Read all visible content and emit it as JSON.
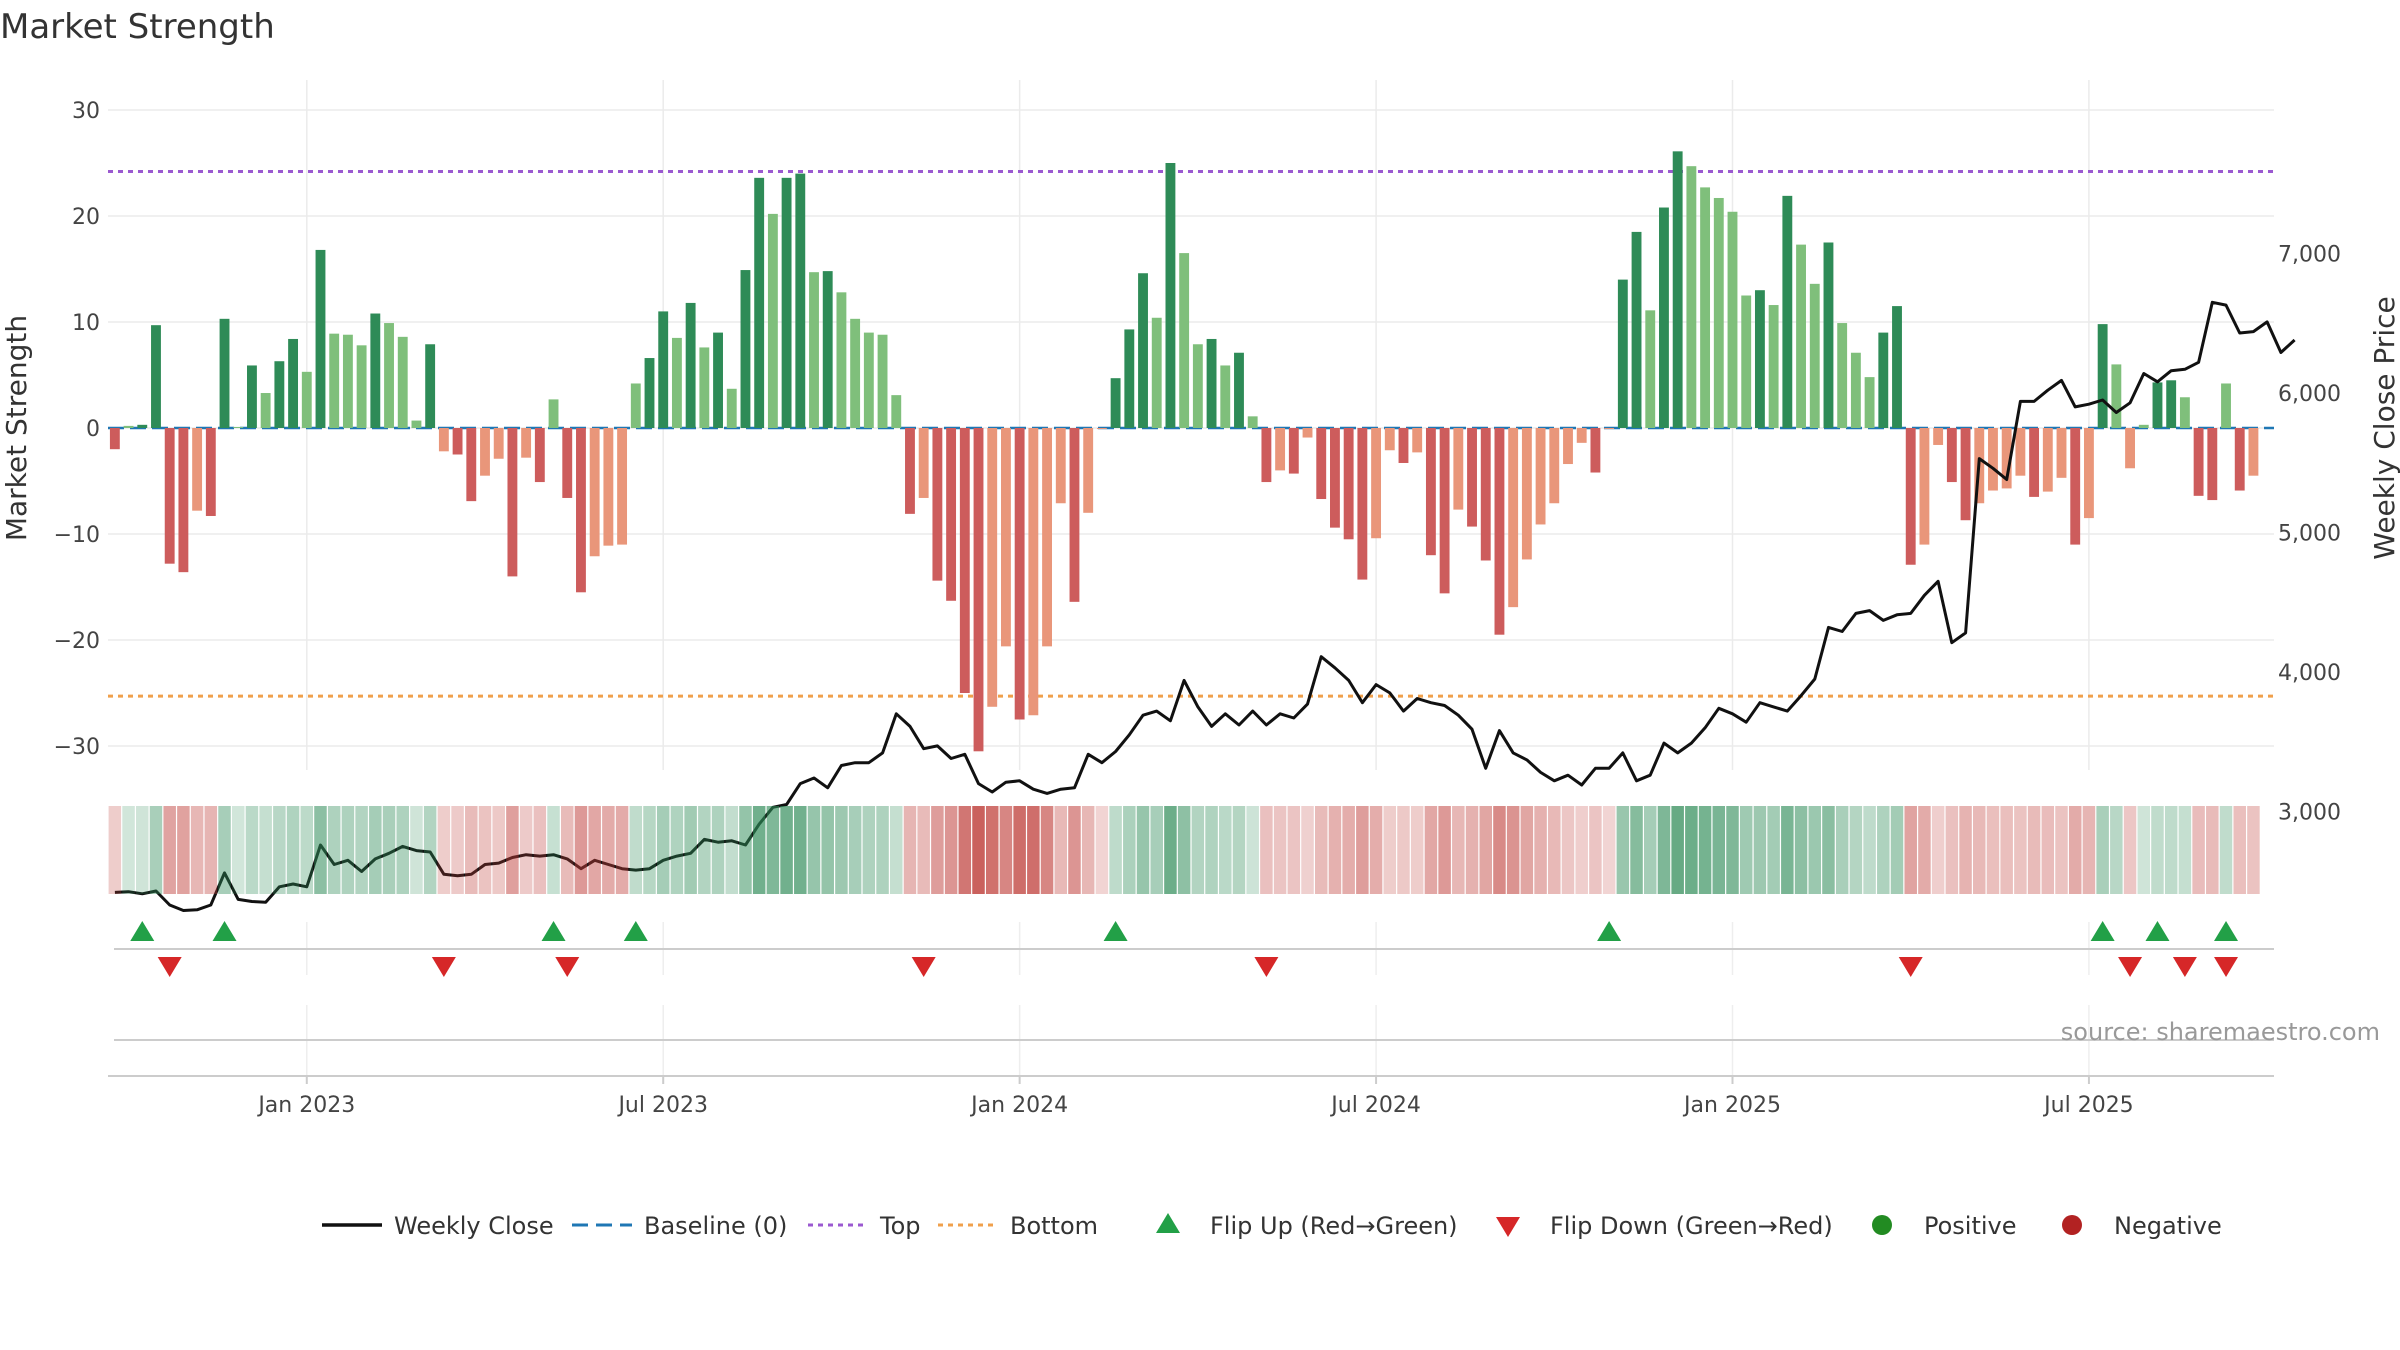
{
  "chart_data": {
    "type": "bar",
    "title": "Market Strength",
    "ylabel": "Market Strength",
    "y2label": "Weekly Close Price",
    "ylim": [
      -33,
      33
    ],
    "y2lim": [
      2000,
      7200
    ],
    "yticks": [
      30,
      20,
      10,
      0,
      -10,
      -20,
      -30
    ],
    "yticklabels": [
      "30",
      "20",
      "10",
      "0",
      "−10",
      "−20",
      "−30"
    ],
    "y2ticks": [
      7000,
      6000,
      5000,
      4000,
      3000
    ],
    "y2ticklabels": [
      "7,000",
      "6,000",
      "5,000",
      "4,000",
      "3,000"
    ],
    "xticklabels": [
      "Jan 2023",
      "Jul 2023",
      "Jan 2024",
      "Jul 2024",
      "Jan 2025",
      "Jul 2025"
    ],
    "xtick_index": [
      14,
      40,
      66,
      92,
      118,
      144
    ],
    "top_level": 24.2,
    "bottom_level": -25.3,
    "weeks": 158,
    "strength": [
      -2,
      0.2,
      0.3,
      9.7,
      -12.8,
      -13.6,
      -7.8,
      -8.3,
      10.3,
      0.1,
      5.9,
      3.3,
      6.3,
      8.4,
      5.3,
      16.8,
      8.9,
      8.8,
      7.8,
      10.8,
      9.9,
      8.6,
      0.7,
      7.9,
      -2.2,
      -2.5,
      -6.9,
      -4.5,
      -2.9,
      -14,
      -2.8,
      -5.1,
      2.7,
      -6.6,
      -15.5,
      -12.1,
      -11.1,
      -11,
      4.2,
      6.6,
      11,
      8.5,
      11.8,
      7.6,
      9,
      3.7,
      14.9,
      23.6,
      20.2,
      23.6,
      24,
      14.7,
      14.8,
      12.8,
      10.3,
      9,
      8.8,
      3.1,
      -8.1,
      -6.6,
      -14.4,
      -16.3,
      -25,
      -30.5,
      -26.3,
      -20.6,
      -27.5,
      -27.1,
      -20.6,
      -7.1,
      -16.4,
      -8,
      -0.1,
      4.7,
      9.3,
      14.6,
      10.4,
      25,
      16.5,
      7.9,
      8.4,
      5.9,
      7.1,
      1.1,
      -5.1,
      -4,
      -4.3,
      -0.9,
      -6.7,
      -9.4,
      -10.5,
      -14.3,
      -10.4,
      -2.1,
      -3.3,
      -2.3,
      -12,
      -15.6,
      -7.7,
      -9.3,
      -12.5,
      -19.5,
      -16.9,
      -12.4,
      -9.1,
      -7.1,
      -3.4,
      -1.4,
      -4.2,
      -0.1,
      14,
      18.5,
      11.1,
      20.8,
      26.1,
      24.7,
      22.7,
      21.7,
      20.4,
      12.5,
      13,
      11.6,
      21.9,
      17.3,
      13.6,
      17.5,
      9.9,
      7.1,
      4.8,
      9,
      11.5,
      -12.9,
      -11,
      -1.6,
      -5.1,
      -8.7,
      -7.1,
      -5.9,
      -5.7,
      -4.5,
      -6.5,
      -6,
      -4.7,
      -11,
      -8.5,
      9.8,
      6,
      -3.8,
      0.3,
      4.3,
      4.5,
      2.9,
      -6.4,
      -6.8,
      4.2,
      -5.9,
      -4.5
    ],
    "price": [
      2420,
      2425,
      2410,
      2430,
      2330,
      2290,
      2295,
      2330,
      2560,
      2370,
      2355,
      2350,
      2460,
      2480,
      2460,
      2760,
      2620,
      2650,
      2570,
      2660,
      2700,
      2750,
      2720,
      2710,
      2550,
      2540,
      2550,
      2620,
      2630,
      2670,
      2690,
      2680,
      2690,
      2660,
      2590,
      2650,
      2620,
      2590,
      2580,
      2590,
      2650,
      2680,
      2700,
      2800,
      2780,
      2790,
      2760,
      2910,
      3030,
      3050,
      3200,
      3240,
      3170,
      3330,
      3350,
      3350,
      3420,
      3700,
      3610,
      3450,
      3470,
      3380,
      3410,
      3200,
      3140,
      3210,
      3220,
      3160,
      3130,
      3160,
      3170,
      3410,
      3350,
      3430,
      3550,
      3690,
      3720,
      3650,
      3940,
      3750,
      3610,
      3700,
      3620,
      3720,
      3620,
      3700,
      3670,
      3770,
      4110,
      4030,
      3940,
      3780,
      3910,
      3850,
      3720,
      3810,
      3780,
      3760,
      3690,
      3590,
      3310,
      3580,
      3420,
      3370,
      3280,
      3220,
      3260,
      3190,
      3310,
      3310,
      3420,
      3220,
      3260,
      3490,
      3420,
      3490,
      3600,
      3740,
      3700,
      3640,
      3780,
      3750,
      3720,
      3830,
      3950,
      4320,
      4290,
      4420,
      4440,
      4370,
      4410,
      4420,
      4550,
      4650,
      4210,
      4280,
      5530,
      5460,
      5380,
      5940,
      5940,
      6020,
      6090,
      5900,
      5920,
      5950,
      5860,
      5930,
      6140,
      6080,
      6160,
      6170,
      6220,
      6650,
      6630,
      6430,
      6440,
      6510,
      6290,
      6380
    ],
    "flip_up_index": [
      2,
      8,
      32,
      38,
      73,
      109,
      145,
      149,
      154
    ],
    "flip_down_index": [
      4,
      24,
      33,
      59,
      84,
      131,
      147,
      151,
      154
    ],
    "colors": {
      "green_strong": "#2e8b57",
      "green_light": "#7fbf7b",
      "red_strong": "#cd5c5c",
      "red_light": "#e9967a",
      "price_line": "#111111",
      "baseline": "#1f77b4",
      "top": "#9b59d0",
      "bottom": "#f0a04b",
      "flip_up": "#22a047",
      "flip_down": "#d62728",
      "positive": "#228b22",
      "negative": "#b22222"
    },
    "legend": [
      {
        "label": "Weekly Close",
        "kind": "line",
        "color": "#111111"
      },
      {
        "label": "Baseline (0)",
        "kind": "dash",
        "color": "#1f77b4"
      },
      {
        "label": "Top",
        "kind": "dot",
        "color": "#9b59d0"
      },
      {
        "label": "Bottom",
        "kind": "dot",
        "color": "#f0a04b"
      },
      {
        "label": "Flip Up (Red→Green)",
        "kind": "tri-up",
        "color": "#22a047"
      },
      {
        "label": "Flip Down (Green→Red)",
        "kind": "tri-down",
        "color": "#d62728"
      },
      {
        "label": "Positive",
        "kind": "circle",
        "color": "#228b22"
      },
      {
        "label": "Negative",
        "kind": "circle",
        "color": "#b22222"
      }
    ],
    "source": "source: sharemaestro.com"
  }
}
